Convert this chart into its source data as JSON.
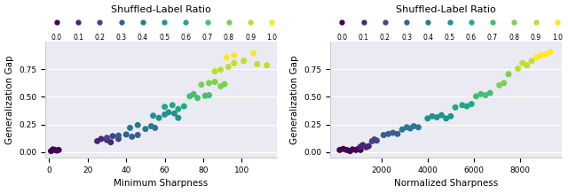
{
  "title": "Shuffled-Label Ratio",
  "xlabel_left": "Minimum Sharpness",
  "xlabel_right": "Normalized Sharpness",
  "ylabel": "Generalization Gap",
  "colormap": "viridis",
  "ratios": [
    0.0,
    0.1,
    0.2,
    0.3,
    0.4,
    0.5,
    0.6,
    0.7,
    0.8,
    0.9,
    1.0
  ],
  "left_data": {
    "x": [
      1,
      2,
      3,
      4,
      5,
      25,
      27,
      30,
      32,
      30,
      33,
      36,
      36,
      40,
      43,
      46,
      42,
      46,
      50,
      53,
      55,
      54,
      57,
      60,
      62,
      65,
      67,
      60,
      64,
      67,
      70,
      73,
      75,
      77,
      81,
      83,
      79,
      83,
      86,
      89,
      91,
      86,
      89,
      93,
      96,
      101,
      108,
      113,
      92,
      96,
      106
    ],
    "y": [
      0.01,
      0.025,
      0.02,
      0.015,
      0.02,
      0.1,
      0.12,
      0.11,
      0.09,
      0.13,
      0.145,
      0.12,
      0.15,
      0.16,
      0.14,
      0.155,
      0.22,
      0.245,
      0.21,
      0.235,
      0.22,
      0.33,
      0.31,
      0.34,
      0.36,
      0.35,
      0.31,
      0.41,
      0.425,
      0.39,
      0.415,
      0.505,
      0.525,
      0.49,
      0.51,
      0.515,
      0.61,
      0.625,
      0.635,
      0.595,
      0.615,
      0.73,
      0.745,
      0.77,
      0.805,
      0.825,
      0.795,
      0.785,
      0.855,
      0.875,
      0.895
    ],
    "c": [
      0.0,
      0.0,
      0.0,
      0.0,
      0.0,
      0.1,
      0.1,
      0.1,
      0.1,
      0.2,
      0.2,
      0.2,
      0.3,
      0.3,
      0.3,
      0.3,
      0.4,
      0.4,
      0.4,
      0.4,
      0.4,
      0.5,
      0.5,
      0.5,
      0.5,
      0.5,
      0.5,
      0.6,
      0.6,
      0.6,
      0.6,
      0.7,
      0.7,
      0.7,
      0.7,
      0.7,
      0.8,
      0.8,
      0.8,
      0.8,
      0.8,
      0.9,
      0.9,
      0.9,
      0.9,
      0.9,
      0.9,
      0.9,
      1.0,
      1.0,
      1.0
    ]
  },
  "right_data": {
    "x": [
      200,
      350,
      500,
      650,
      750,
      900,
      1000,
      1100,
      1100,
      1200,
      1350,
      1450,
      1600,
      1700,
      1800,
      2100,
      2300,
      2500,
      2700,
      2900,
      3100,
      3250,
      3400,
      3600,
      4000,
      4200,
      4400,
      4600,
      4800,
      5000,
      5200,
      5500,
      5700,
      5900,
      6100,
      6300,
      6500,
      6700,
      7100,
      7300,
      7500,
      7900,
      8100,
      8300,
      8500,
      8700,
      8900,
      9100,
      9300
    ],
    "y": [
      0.02,
      0.03,
      0.02,
      0.01,
      0.025,
      0.02,
      0.03,
      0.02,
      0.05,
      0.065,
      0.045,
      0.055,
      0.1,
      0.115,
      0.105,
      0.155,
      0.165,
      0.175,
      0.165,
      0.205,
      0.225,
      0.215,
      0.235,
      0.225,
      0.305,
      0.325,
      0.315,
      0.335,
      0.305,
      0.325,
      0.405,
      0.425,
      0.415,
      0.435,
      0.505,
      0.525,
      0.515,
      0.535,
      0.605,
      0.625,
      0.705,
      0.755,
      0.805,
      0.785,
      0.825,
      0.855,
      0.875,
      0.885,
      0.905
    ],
    "c": [
      0.0,
      0.0,
      0.0,
      0.0,
      0.0,
      0.0,
      0.0,
      0.0,
      0.1,
      0.1,
      0.1,
      0.1,
      0.2,
      0.2,
      0.2,
      0.3,
      0.3,
      0.3,
      0.3,
      0.4,
      0.4,
      0.4,
      0.4,
      0.4,
      0.5,
      0.5,
      0.5,
      0.5,
      0.5,
      0.5,
      0.6,
      0.6,
      0.6,
      0.6,
      0.7,
      0.7,
      0.7,
      0.7,
      0.8,
      0.8,
      0.8,
      0.9,
      0.9,
      0.9,
      0.9,
      1.0,
      1.0,
      1.0,
      1.0
    ]
  },
  "xlim_left": [
    -2,
    118
  ],
  "xlim_right": [
    -200,
    9800
  ],
  "ylim": [
    -0.05,
    1.0
  ],
  "yticks": [
    0.0,
    0.25,
    0.5,
    0.75
  ],
  "xticks_left": [
    0,
    20,
    40,
    60,
    80,
    100
  ],
  "xticks_right": [
    2000,
    4000,
    6000,
    8000
  ],
  "marker_size": 25,
  "bg_color": "#eaeaf2",
  "figure_bg": "#ffffff",
  "spine_color": "#cccccc",
  "grid_color": "#ffffff"
}
